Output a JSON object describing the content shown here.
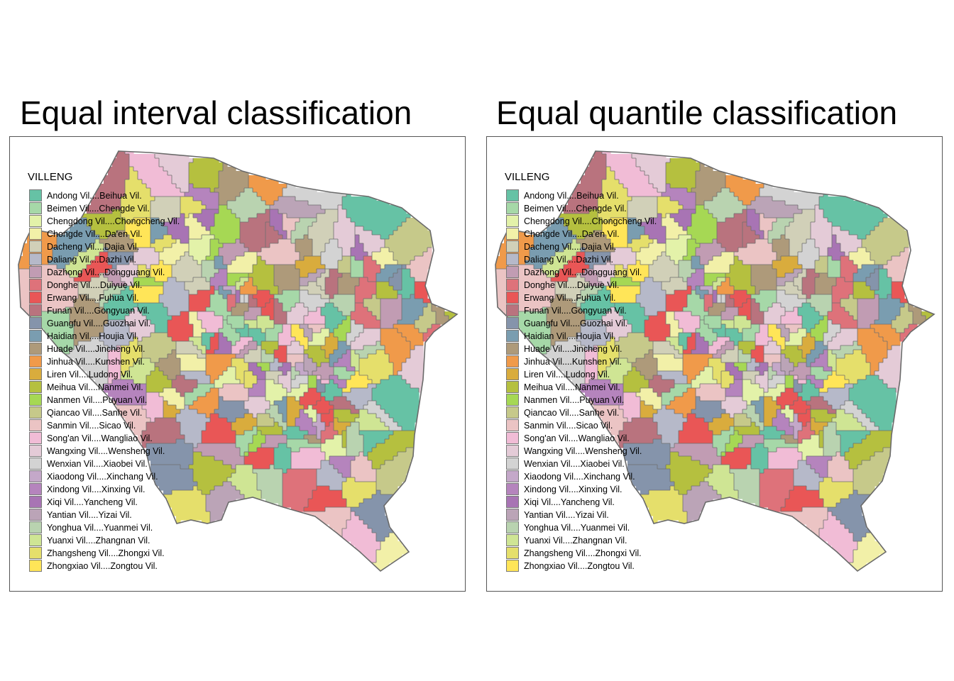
{
  "panels": [
    {
      "title": "Equal interval classification",
      "legend_title": "VILLENG"
    },
    {
      "title": "Equal quantile classification",
      "legend_title": "VILLENG"
    }
  ],
  "legend": [
    {
      "label": "Andong Vil....Beihua Vil.",
      "color": "#66c2a5"
    },
    {
      "label": "Beimen Vil....Chengde Vil.",
      "color": "#a6d8a8"
    },
    {
      "label": "Chengdong Vil....Chongcheng Vil.",
      "color": "#e3f2a9"
    },
    {
      "label": "Chongde Vil....Da'en Vil.",
      "color": "#f2f0a8"
    },
    {
      "label": "Dacheng Vil....Dajia Vil.",
      "color": "#d1d0b8"
    },
    {
      "label": "Daliang Vil....Dazhi Vil.",
      "color": "#b6b9c9"
    },
    {
      "label": "Dazhong Vil....Dongguang Vil.",
      "color": "#c19cb3"
    },
    {
      "label": "Donghe Vil....Duiyue Vil.",
      "color": "#de727a"
    },
    {
      "label": "Erwang Vil....Fuhua Vil.",
      "color": "#e95656"
    },
    {
      "label": "Funan Vil....Gongyuan Vil.",
      "color": "#b9737e"
    },
    {
      "label": "Guangfu Vil....Guozhai Vil.",
      "color": "#8594ab"
    },
    {
      "label": "Haidian Vil....Houjia Vil.",
      "color": "#7a9db0"
    },
    {
      "label": "Huade Vil....Jincheng Vil.",
      "color": "#ae9a7a"
    },
    {
      "label": "Jinhua Vil....Kunshen Vil.",
      "color": "#f09a4a"
    },
    {
      "label": "Liren Vil....Ludong Vil.",
      "color": "#d9ac3d"
    },
    {
      "label": "Meihua Vil....Nanmei Vil.",
      "color": "#b5c03f"
    },
    {
      "label": "Nanmen Vil....Puyuan Vil.",
      "color": "#a6d854"
    },
    {
      "label": "Qiancao Vil....Sanhe Vil.",
      "color": "#c6c98a"
    },
    {
      "label": "Sanmin Vil....Sicao Vil.",
      "color": "#ebc4c4"
    },
    {
      "label": "Song'an Vil....Wangliao Vil.",
      "color": "#f1bcd6"
    },
    {
      "label": "Wangxing Vil....Wensheng Vil.",
      "color": "#e4cbd7"
    },
    {
      "label": "Wenxian Vil....Xiaobei Vil.",
      "color": "#d3d3d3"
    },
    {
      "label": "Xiaodong Vil....Xinchang Vil.",
      "color": "#c4a8c9"
    },
    {
      "label": "Xindong Vil....Xinxing Vil.",
      "color": "#b584bd"
    },
    {
      "label": "Xiqi Vil....Yancheng Vil.",
      "color": "#a874b4"
    },
    {
      "label": "Yantian  Vil....Yizai Vil.",
      "color": "#bba4b7"
    },
    {
      "label": "Yonghua Vil....Yuanmei Vil.",
      "color": "#b9d3b0"
    },
    {
      "label": "Yuanxi Vil....Zhangnan Vil.",
      "color": "#cfe594"
    },
    {
      "label": "Zhangsheng Vil....Zhongxi Vil.",
      "color": "#e5df6b"
    },
    {
      "label": "Zhongxiao Vil....Zongtou Vil.",
      "color": "#ffe558"
    }
  ]
}
